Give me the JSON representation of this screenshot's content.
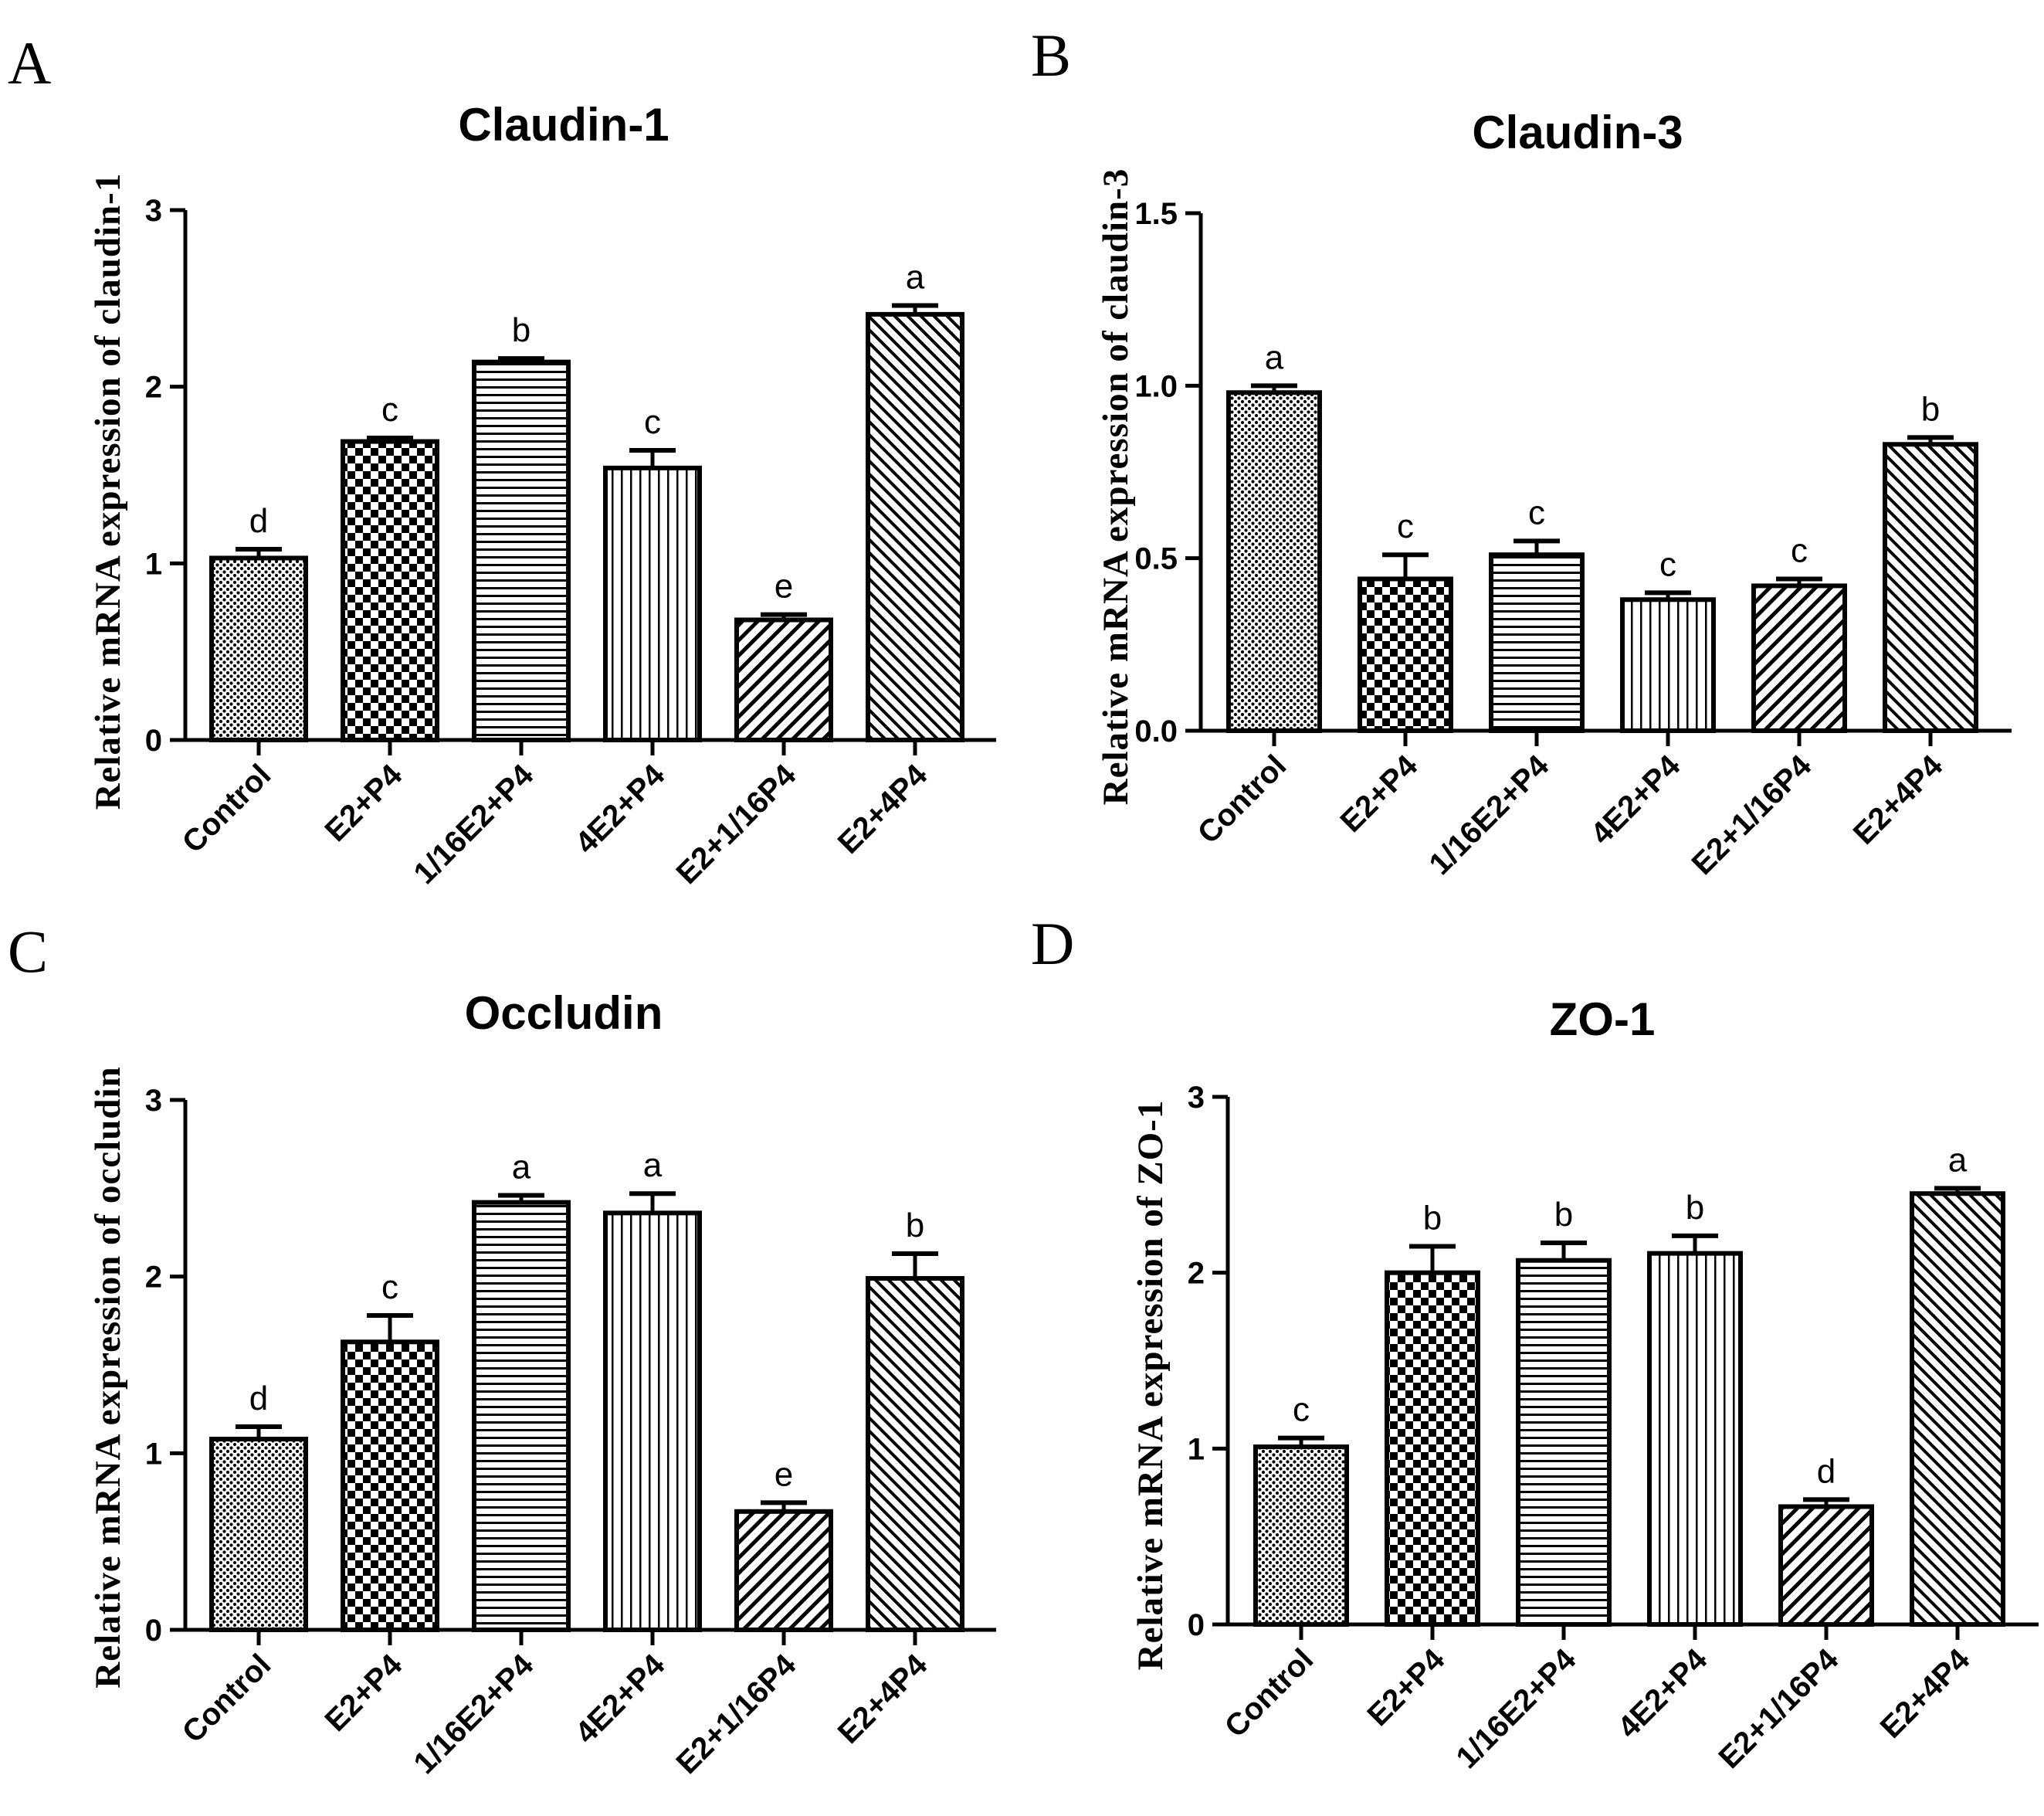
{
  "panels": [
    {
      "letter": "A"
    },
    {
      "letter": "B"
    },
    {
      "letter": "C"
    },
    {
      "letter": "D"
    }
  ],
  "chart_data": [
    {
      "type": "bar",
      "title": "Claudin-1",
      "ylabel": "Relative mRNA expression of claudin-1",
      "xlabel": "",
      "categories": [
        "Control",
        "E2+P4",
        "1/16E2+P4",
        "4E2+P4",
        "E2+1/16P4",
        "E2+4P4"
      ],
      "values": [
        1.03,
        1.69,
        2.14,
        1.54,
        0.68,
        2.41
      ],
      "errors": [
        0.05,
        0.02,
        0.02,
        0.1,
        0.03,
        0.05
      ],
      "significance": [
        "d",
        "c",
        "b",
        "c",
        "e",
        "a"
      ],
      "patterns": [
        "dots",
        "checker",
        "hlines",
        "vlines",
        "diag",
        "diag-dense"
      ],
      "ylim": [
        0,
        3
      ],
      "yticks": [
        "0",
        "1",
        "2",
        "3"
      ],
      "grid": false
    },
    {
      "type": "bar",
      "title": "Claudin-3",
      "ylabel": "Relative mRNA expression of claudin-3",
      "xlabel": "",
      "categories": [
        "Control",
        "E2+P4",
        "1/16E2+P4",
        "4E2+P4",
        "E2+1/16P4",
        "E2+4P4"
      ],
      "values": [
        0.98,
        0.44,
        0.51,
        0.38,
        0.42,
        0.83
      ],
      "errors": [
        0.02,
        0.07,
        0.04,
        0.02,
        0.02,
        0.02
      ],
      "significance": [
        "a",
        "c",
        "c",
        "c",
        "c",
        "b"
      ],
      "patterns": [
        "dots",
        "checker",
        "hlines",
        "vlines",
        "diag",
        "diag-dense"
      ],
      "ylim": [
        0,
        1.5
      ],
      "yticks": [
        "0.0",
        "0.5",
        "1.0",
        "1.5"
      ],
      "grid": false
    },
    {
      "type": "bar",
      "title": "Occludin",
      "ylabel": "Relative mRNA expression of occludin",
      "xlabel": "",
      "categories": [
        "Control",
        "E2+P4",
        "1/16E2+P4",
        "4E2+P4",
        "E2+1/16P4",
        "E2+4P4"
      ],
      "values": [
        1.08,
        1.63,
        2.42,
        2.36,
        0.67,
        1.99
      ],
      "errors": [
        0.07,
        0.15,
        0.04,
        0.11,
        0.05,
        0.14
      ],
      "significance": [
        "d",
        "c",
        "a",
        "a",
        "e",
        "b"
      ],
      "patterns": [
        "dots",
        "checker",
        "hlines",
        "vlines",
        "diag",
        "diag-dense"
      ],
      "ylim": [
        0,
        3
      ],
      "yticks": [
        "0",
        "1",
        "2",
        "3"
      ],
      "grid": false
    },
    {
      "type": "bar",
      "title": "ZO-1",
      "ylabel": "Relative mRNA expression of ZO-1",
      "xlabel": "",
      "categories": [
        "Control",
        "E2+P4",
        "1/16E2+P4",
        "4E2+P4",
        "E2+1/16P4",
        "E2+4P4"
      ],
      "values": [
        1.01,
        2.0,
        2.07,
        2.11,
        0.67,
        2.45
      ],
      "errors": [
        0.05,
        0.15,
        0.1,
        0.1,
        0.04,
        0.03
      ],
      "significance": [
        "c",
        "b",
        "b",
        "b",
        "d",
        "a"
      ],
      "patterns": [
        "dots",
        "checker",
        "hlines",
        "vlines",
        "diag",
        "diag-dense"
      ],
      "ylim": [
        0,
        3
      ],
      "yticks": [
        "0",
        "1",
        "2",
        "3"
      ],
      "grid": false
    }
  ]
}
